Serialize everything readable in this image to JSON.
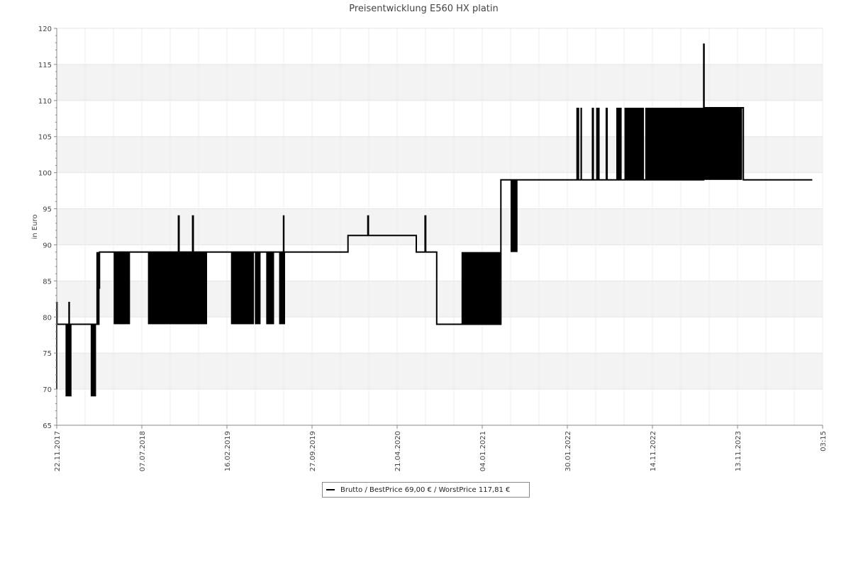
{
  "chart_data": {
    "type": "line",
    "title": "Preisentwicklung E560 HX platin",
    "ylabel": "in Euro",
    "xlabel": "",
    "ylim": [
      65,
      120
    ],
    "yticks": [
      65,
      70,
      75,
      80,
      85,
      90,
      95,
      100,
      105,
      110,
      115,
      120
    ],
    "xlim": [
      "2017-11-22",
      "2024-07-23"
    ],
    "xtick_labels": [
      "22.11.2017",
      "07.07.2018",
      "16.02.2019",
      "27.09.2019",
      "21.04.2020",
      "04.01.2021",
      "30.01.2022",
      "14.11.2022",
      "13.11.2023",
      "03:15"
    ],
    "grid": true,
    "band_color": "#f3f3f3",
    "line_color": "#000000",
    "legend": {
      "placement": "bottom",
      "entries": [
        "Brutto / BestPrice  69,00 € / WorstPrice  117,81 €"
      ]
    },
    "series": [
      {
        "name": "Brutto / BestPrice  69,00 € / WorstPrice  117,81 €",
        "points": [
          [
            "2017-11-22",
            70
          ],
          [
            "2017-11-22",
            82
          ],
          [
            "2017-11-23",
            79
          ],
          [
            "2017-12-29",
            79
          ],
          [
            "2017-12-31",
            82
          ],
          [
            "2018-01-01",
            79
          ],
          [
            "2018-03-23",
            79
          ],
          [
            "2018-03-27",
            79
          ],
          [
            "2018-04-05",
            84
          ],
          [
            "2018-04-07",
            89
          ],
          [
            "2018-11-03",
            89
          ],
          [
            "2018-11-14",
            89
          ],
          [
            "2018-12-14",
            94
          ],
          [
            "2018-12-16",
            89
          ],
          [
            "2019-01-26",
            89
          ],
          [
            "2019-01-28",
            94
          ],
          [
            "2019-01-30",
            89
          ],
          [
            "2019-06-28",
            89
          ],
          [
            "2019-11-12",
            89
          ],
          [
            "2019-11-13",
            94
          ],
          [
            "2019-11-14",
            89
          ],
          [
            "2020-06-04",
            89
          ],
          [
            "2020-06-05",
            91.3
          ],
          [
            "2020-08-05",
            91.3
          ],
          [
            "2020-08-07",
            94
          ],
          [
            "2020-08-09",
            91.3
          ],
          [
            "2021-01-07",
            91.3
          ],
          [
            "2021-01-08",
            89
          ],
          [
            "2021-02-04",
            89
          ],
          [
            "2021-02-05",
            94
          ],
          [
            "2021-02-07",
            89
          ],
          [
            "2021-03-12",
            89
          ],
          [
            "2021-03-14",
            79
          ],
          [
            "2021-06-01",
            79
          ],
          [
            "2021-10-02",
            79
          ],
          [
            "2021-10-04",
            99
          ],
          [
            "2021-11-26",
            99
          ],
          [
            "2022-06-01",
            99
          ],
          [
            "2022-12-10",
            99
          ],
          [
            "2023-06-20",
            99
          ],
          [
            "2023-07-10",
            99
          ],
          [
            "2023-07-11",
            117.8
          ],
          [
            "2023-07-12",
            109
          ],
          [
            "2023-11-10",
            109
          ],
          [
            "2023-11-14",
            99
          ],
          [
            "2024-06-20",
            99
          ]
        ],
        "fluctuation_bands": [
          {
            "from": "2017-12-20",
            "to": "2018-01-08",
            "low": 69,
            "high": 79
          },
          {
            "from": "2018-03-10",
            "to": "2018-03-27",
            "low": 69,
            "high": 79
          },
          {
            "from": "2018-03-28",
            "to": "2018-04-05",
            "low": 79,
            "high": 89
          },
          {
            "from": "2018-05-22",
            "to": "2018-07-13",
            "low": 79,
            "high": 89
          },
          {
            "from": "2018-09-08",
            "to": "2019-03-15",
            "low": 79,
            "high": 89
          },
          {
            "from": "2019-05-30",
            "to": "2019-08-11",
            "low": 79,
            "high": 89
          },
          {
            "from": "2019-08-14",
            "to": "2019-09-01",
            "low": 79,
            "high": 89
          },
          {
            "from": "2019-09-19",
            "to": "2019-10-14",
            "low": 79,
            "high": 89
          },
          {
            "from": "2019-10-30",
            "to": "2019-11-18",
            "low": 79,
            "high": 89
          },
          {
            "from": "2021-06-01",
            "to": "2021-10-02",
            "low": 79,
            "high": 89
          },
          {
            "from": "2021-11-04",
            "to": "2021-11-26",
            "low": 89,
            "high": 99
          },
          {
            "from": "2022-06-01",
            "to": "2022-06-10",
            "low": 99,
            "high": 109
          },
          {
            "from": "2022-06-14",
            "to": "2022-06-19",
            "low": 99,
            "high": 109
          },
          {
            "from": "2022-07-20",
            "to": "2022-07-27",
            "low": 99,
            "high": 109
          },
          {
            "from": "2022-08-03",
            "to": "2022-08-14",
            "low": 99,
            "high": 109
          },
          {
            "from": "2022-09-02",
            "to": "2022-09-09",
            "low": 99,
            "high": 109
          },
          {
            "from": "2022-10-06",
            "to": "2022-10-23",
            "low": 99,
            "high": 109
          },
          {
            "from": "2022-11-01",
            "to": "2023-01-02",
            "low": 99,
            "high": 109
          },
          {
            "from": "2023-01-06",
            "to": "2023-11-10",
            "low": 99,
            "high": 109
          }
        ]
      }
    ]
  }
}
